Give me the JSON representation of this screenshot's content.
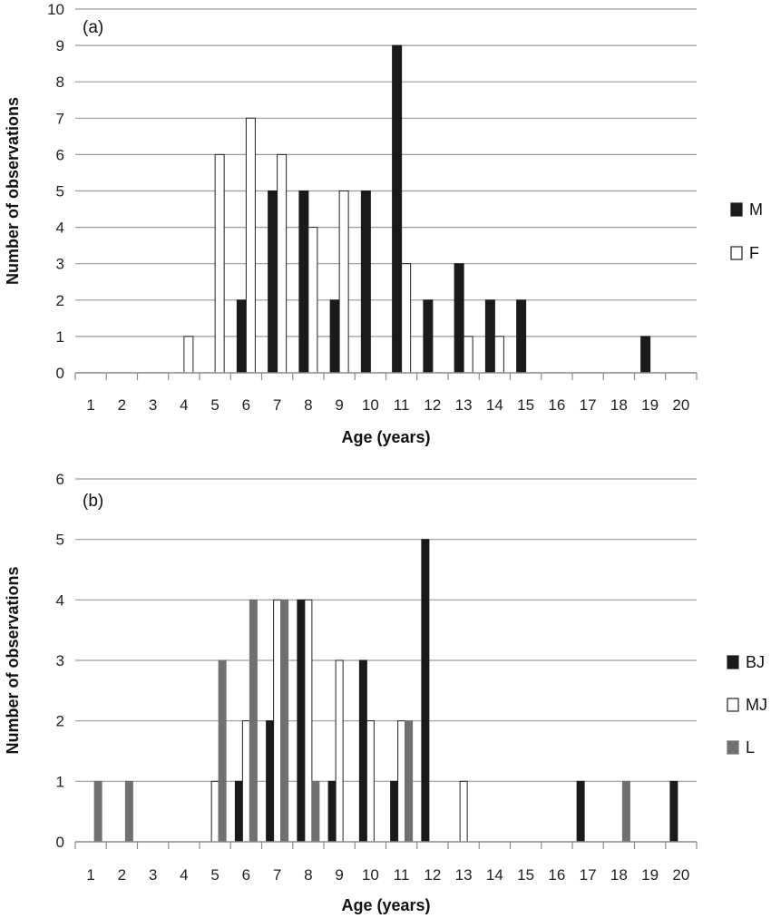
{
  "chart_data": [
    {
      "type": "bar",
      "panel_label": "(a)",
      "xlabel": "Age (years)",
      "ylabel": "Number of observations",
      "categories": [
        "1",
        "2",
        "3",
        "4",
        "5",
        "6",
        "7",
        "8",
        "9",
        "10",
        "11",
        "12",
        "13",
        "14",
        "15",
        "16",
        "17",
        "18",
        "19",
        "20"
      ],
      "ylim": [
        0,
        10
      ],
      "yticks": [
        "0",
        "1",
        "2",
        "3",
        "4",
        "5",
        "6",
        "7",
        "8",
        "9",
        "10"
      ],
      "grid": true,
      "legend_position": "right",
      "series": [
        {
          "name": "M",
          "color": "#1a1a1a",
          "values": [
            0,
            0,
            0,
            0,
            0,
            2,
            5,
            5,
            2,
            5,
            9,
            2,
            3,
            2,
            2,
            0,
            0,
            0,
            1,
            0
          ]
        },
        {
          "name": "F",
          "color": "#ffffff",
          "values": [
            0,
            0,
            0,
            1,
            6,
            7,
            6,
            4,
            5,
            0,
            3,
            0,
            1,
            1,
            0,
            0,
            0,
            0,
            0,
            0
          ]
        }
      ]
    },
    {
      "type": "bar",
      "panel_label": "(b)",
      "xlabel": "Age (years)",
      "ylabel": "Number of observations",
      "categories": [
        "1",
        "2",
        "3",
        "4",
        "5",
        "6",
        "7",
        "8",
        "9",
        "10",
        "11",
        "12",
        "13",
        "14",
        "15",
        "16",
        "17",
        "18",
        "19",
        "20"
      ],
      "ylim": [
        0,
        6
      ],
      "yticks": [
        "0",
        "1",
        "2",
        "3",
        "4",
        "5",
        "6"
      ],
      "grid": true,
      "legend_position": "right",
      "series": [
        {
          "name": "BJ",
          "color": "#1a1a1a",
          "values": [
            0,
            0,
            0,
            0,
            0,
            1,
            2,
            4,
            1,
            3,
            1,
            5,
            0,
            0,
            0,
            0,
            1,
            0,
            0,
            1
          ]
        },
        {
          "name": "MJ",
          "color": "#ffffff",
          "values": [
            0,
            0,
            0,
            0,
            1,
            2,
            4,
            4,
            3,
            2,
            2,
            0,
            1,
            0,
            0,
            0,
            0,
            0,
            0,
            0
          ]
        },
        {
          "name": "L",
          "color": "#707070",
          "values": [
            1,
            1,
            0,
            0,
            3,
            4,
            4,
            1,
            0,
            0,
            2,
            0,
            0,
            0,
            0,
            0,
            0,
            1,
            0,
            0
          ]
        }
      ]
    }
  ]
}
